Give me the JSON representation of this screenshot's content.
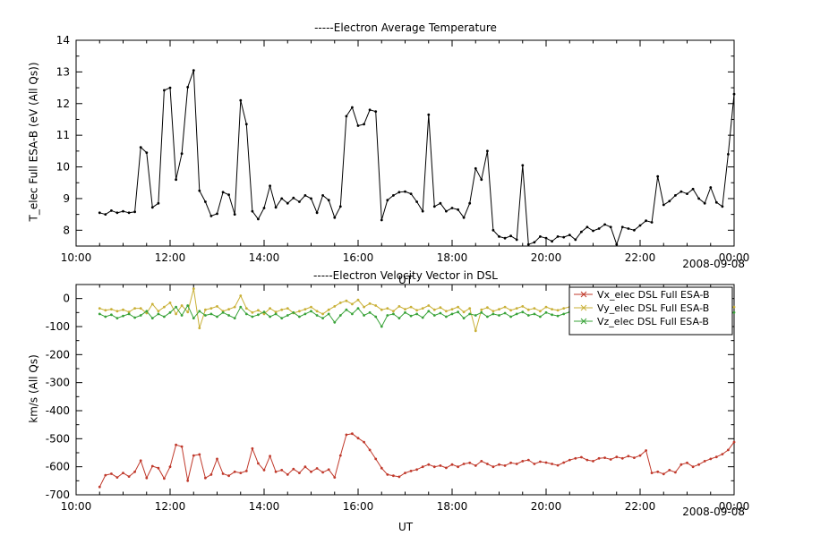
{
  "page": {
    "background": "#ffffff",
    "text_color": "#000000"
  },
  "chart_data": [
    {
      "type": "line",
      "title": "-----Electron Average Temperature",
      "ylabel": "T_elec Full ESA-B (eV (All Qs))",
      "xlabel": "UT",
      "date": "2008-09-08",
      "xlim": [
        10,
        24
      ],
      "ylim": [
        7.5,
        14
      ],
      "yticks": [
        8,
        9,
        10,
        11,
        12,
        13,
        14
      ],
      "yminor": 0.5,
      "xminor": 0.5,
      "xticks": {
        "hours": [
          10,
          12,
          14,
          16,
          18,
          20,
          22,
          24
        ],
        "labels": [
          "10:00",
          "12:00",
          "14:00",
          "16:00",
          "18:00",
          "20:00",
          "22:00",
          "00:00"
        ]
      },
      "x": {
        "start": 10.5,
        "step": 0.125,
        "count": 109
      },
      "series": [
        {
          "name": "T_elec Full ESA-B",
          "color": "#000000",
          "values": [
            8.55,
            8.5,
            8.62,
            8.55,
            8.6,
            8.55,
            8.58,
            10.62,
            10.45,
            8.72,
            8.85,
            12.42,
            12.5,
            9.6,
            10.42,
            12.52,
            13.05,
            9.25,
            8.9,
            8.45,
            8.52,
            9.2,
            9.12,
            8.5,
            12.1,
            11.35,
            8.6,
            8.35,
            8.7,
            9.4,
            8.72,
            9.0,
            8.85,
            9.02,
            8.9,
            9.1,
            9.0,
            8.55,
            9.1,
            8.95,
            8.4,
            8.75,
            11.6,
            11.88,
            11.3,
            11.35,
            11.8,
            11.75,
            8.32,
            8.95,
            9.1,
            9.2,
            9.22,
            9.15,
            8.9,
            8.6,
            11.65,
            8.75,
            8.85,
            8.6,
            8.7,
            8.65,
            8.4,
            8.85,
            9.95,
            9.6,
            10.5,
            8.0,
            7.8,
            7.75,
            7.82,
            7.7,
            10.05,
            7.55,
            7.62,
            7.8,
            7.75,
            7.65,
            7.8,
            7.78,
            7.85,
            7.7,
            7.95,
            8.1,
            7.98,
            8.05,
            8.18,
            8.1,
            7.55,
            8.1,
            8.05,
            8.0,
            8.15,
            8.3,
            8.25,
            9.7,
            8.8,
            8.92,
            9.1,
            9.22,
            9.15,
            9.3,
            9.0,
            8.85,
            9.35,
            8.88,
            8.75,
            10.4,
            12.3
          ]
        }
      ]
    },
    {
      "type": "line",
      "title": "-----Electron Velocity Vector in DSL",
      "ylabel": "km/s (All Qs)",
      "xlabel": "UT",
      "date": "2008-09-08",
      "xlim": [
        10,
        24
      ],
      "ylim": [
        -700,
        50
      ],
      "yticks": [
        0,
        -100,
        -200,
        -300,
        -400,
        -500,
        -600,
        -700
      ],
      "yminor": 50,
      "xminor": 0.5,
      "xticks": {
        "hours": [
          10,
          12,
          14,
          16,
          18,
          20,
          22,
          24
        ],
        "labels": [
          "10:00",
          "12:00",
          "14:00",
          "16:00",
          "18:00",
          "20:00",
          "22:00",
          "00:00"
        ]
      },
      "legend": {
        "position": "top-right"
      },
      "x": {
        "start": 10.5,
        "step": 0.125,
        "count": 109
      },
      "series": [
        {
          "name": "Vx_elec DSL Full ESA-B",
          "color": "#c0392b",
          "values": [
            -672,
            -630,
            -625,
            -638,
            -622,
            -635,
            -618,
            -578,
            -640,
            -598,
            -605,
            -642,
            -600,
            -522,
            -528,
            -650,
            -560,
            -556,
            -640,
            -628,
            -572,
            -625,
            -632,
            -618,
            -622,
            -615,
            -535,
            -588,
            -612,
            -562,
            -618,
            -612,
            -628,
            -608,
            -622,
            -600,
            -618,
            -606,
            -620,
            -610,
            -638,
            -560,
            -486,
            -482,
            -498,
            -512,
            -540,
            -572,
            -605,
            -628,
            -632,
            -636,
            -622,
            -615,
            -610,
            -600,
            -592,
            -600,
            -596,
            -604,
            -592,
            -600,
            -590,
            -586,
            -596,
            -580,
            -590,
            -600,
            -592,
            -596,
            -586,
            -590,
            -580,
            -576,
            -590,
            -582,
            -585,
            -590,
            -595,
            -585,
            -576,
            -570,
            -566,
            -576,
            -580,
            -570,
            -568,
            -574,
            -565,
            -570,
            -562,
            -568,
            -560,
            -542,
            -622,
            -618,
            -626,
            -612,
            -620,
            -592,
            -586,
            -600,
            -592,
            -580,
            -572,
            -565,
            -555,
            -540,
            -512
          ]
        },
        {
          "name": "Vy_elec DSL Full ESA-B",
          "color": "#c9b037",
          "values": [
            -35,
            -42,
            -38,
            -45,
            -40,
            -48,
            -35,
            -35,
            -52,
            -20,
            -45,
            -30,
            -15,
            -55,
            -25,
            -48,
            35,
            -105,
            -40,
            -35,
            -28,
            -45,
            -38,
            -30,
            10,
            -35,
            -50,
            -42,
            -55,
            -35,
            -48,
            -40,
            -35,
            -52,
            -45,
            -38,
            -30,
            -45,
            -55,
            -40,
            -28,
            -15,
            -8,
            -20,
            -5,
            -30,
            -18,
            -25,
            -40,
            -35,
            -45,
            -28,
            -38,
            -30,
            -42,
            -35,
            -25,
            -40,
            -32,
            -45,
            -38,
            -30,
            -48,
            -35,
            -115,
            -40,
            -32,
            -45,
            -38,
            -30,
            -42,
            -35,
            -28,
            -40,
            -35,
            -45,
            -30,
            -38,
            -42,
            -35,
            -30,
            -45,
            -38,
            -32,
            -40,
            -35,
            -42,
            -30,
            -38,
            -35,
            -45,
            -32,
            -38,
            -30,
            -42,
            -35,
            -40,
            -32,
            -38,
            -45,
            -35,
            -30,
            -42,
            -38,
            -32,
            -40,
            -35,
            -38,
            -30
          ]
        },
        {
          "name": "Vz_elec DSL Full ESA-B",
          "color": "#3aa33a",
          "values": [
            -55,
            -65,
            -58,
            -70,
            -62,
            -55,
            -68,
            -60,
            -45,
            -70,
            -55,
            -65,
            -50,
            -30,
            -60,
            -25,
            -70,
            -45,
            -60,
            -55,
            -65,
            -50,
            -60,
            -70,
            -30,
            -55,
            -65,
            -58,
            -48,
            -65,
            -55,
            -70,
            -60,
            -50,
            -65,
            -55,
            -45,
            -60,
            -70,
            -55,
            -85,
            -60,
            -40,
            -55,
            -35,
            -60,
            -50,
            -65,
            -100,
            -60,
            -55,
            -70,
            -50,
            -62,
            -55,
            -68,
            -45,
            -60,
            -52,
            -65,
            -55,
            -48,
            -70,
            -55,
            -60,
            -50,
            -65,
            -55,
            -60,
            -52,
            -65,
            -55,
            -48,
            -60,
            -55,
            -65,
            -50,
            -58,
            -62,
            -55,
            -48,
            -65,
            -55,
            -50,
            -60,
            -55,
            -62,
            -50,
            -58,
            -55,
            -65,
            -52,
            -58,
            -50,
            -62,
            -55,
            -60,
            -52,
            -58,
            -65,
            -55,
            -50,
            -62,
            -58,
            -52,
            -60,
            -55,
            -58,
            -50
          ]
        }
      ]
    }
  ]
}
